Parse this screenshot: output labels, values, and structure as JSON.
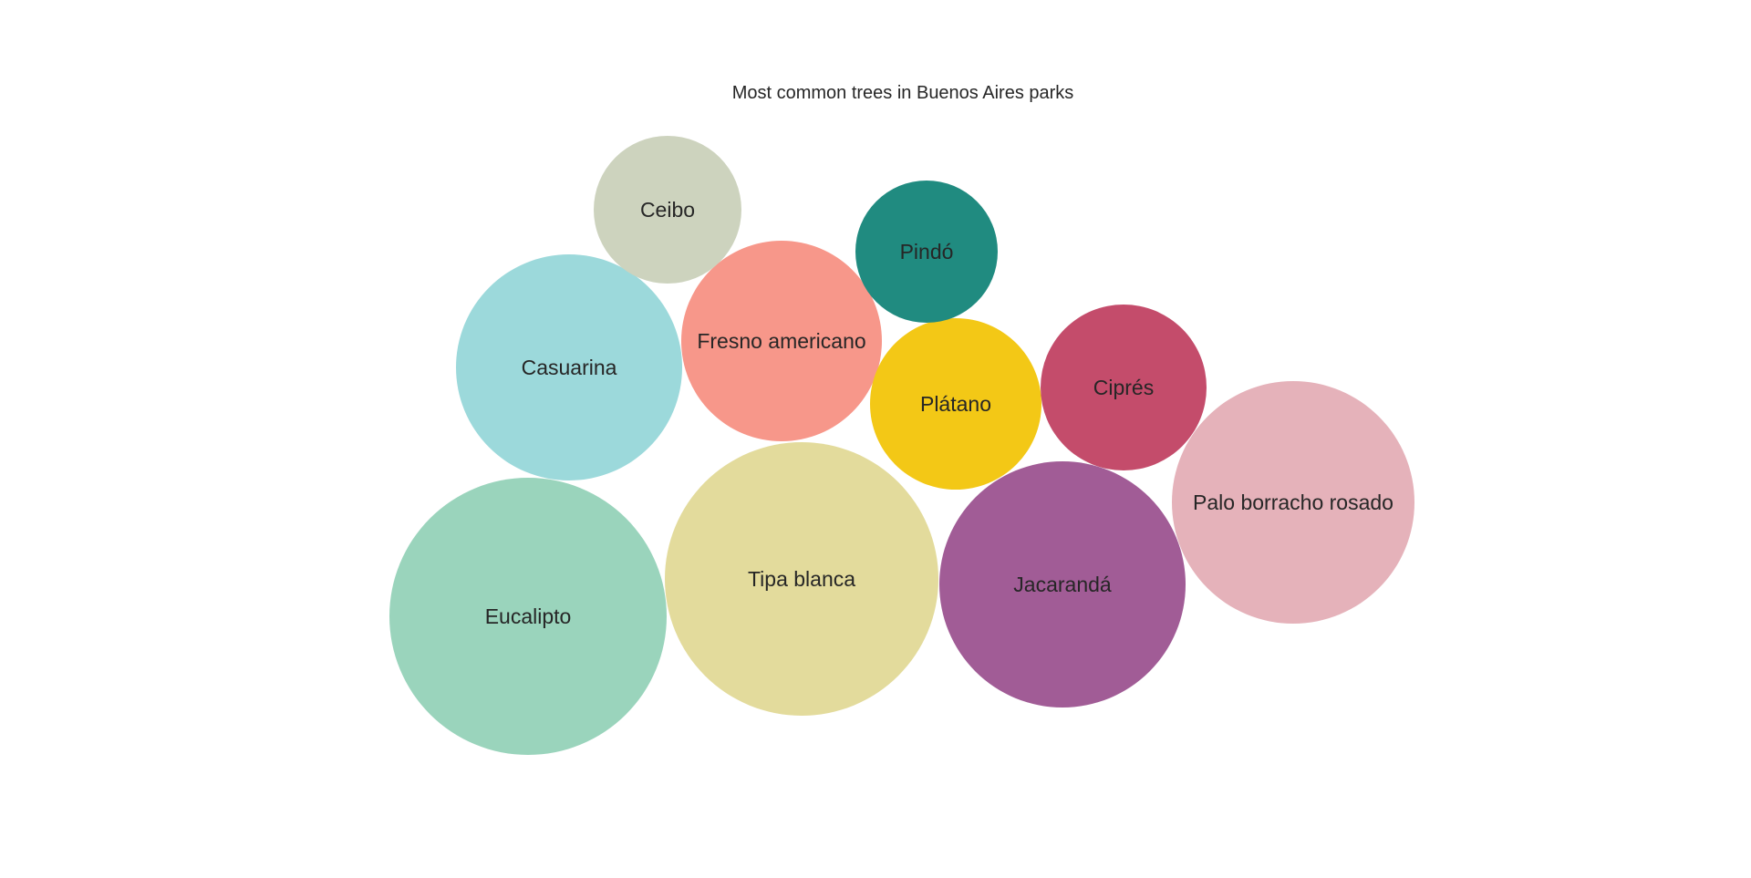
{
  "chart_data": {
    "type": "bubble",
    "title": "Most common trees in Buenos Aires parks",
    "grid": false,
    "legend": "none",
    "bubbles": [
      {
        "label": "Eucalipto",
        "value": 100,
        "color": "#9AD4BC"
      },
      {
        "label": "Tipa blanca",
        "value": 97,
        "color": "#E3DB9C"
      },
      {
        "label": "Jacarandá",
        "value": 79,
        "color": "#A15C96"
      },
      {
        "label": "Palo borracho rosado",
        "value": 76,
        "color": "#E5B2BA"
      },
      {
        "label": "Casuarina",
        "value": 66,
        "color": "#9CD9DB"
      },
      {
        "label": "Fresno americano",
        "value": 53,
        "color": "#F7978A"
      },
      {
        "label": "Plátano",
        "value": 37,
        "color": "#F3C816"
      },
      {
        "label": "Ciprés",
        "value": 36,
        "color": "#C44C6B"
      },
      {
        "label": "Ceibo",
        "value": 28,
        "color": "#CDD3BE"
      },
      {
        "label": "Pindó",
        "value": 26,
        "color": "#208B80"
      }
    ]
  }
}
